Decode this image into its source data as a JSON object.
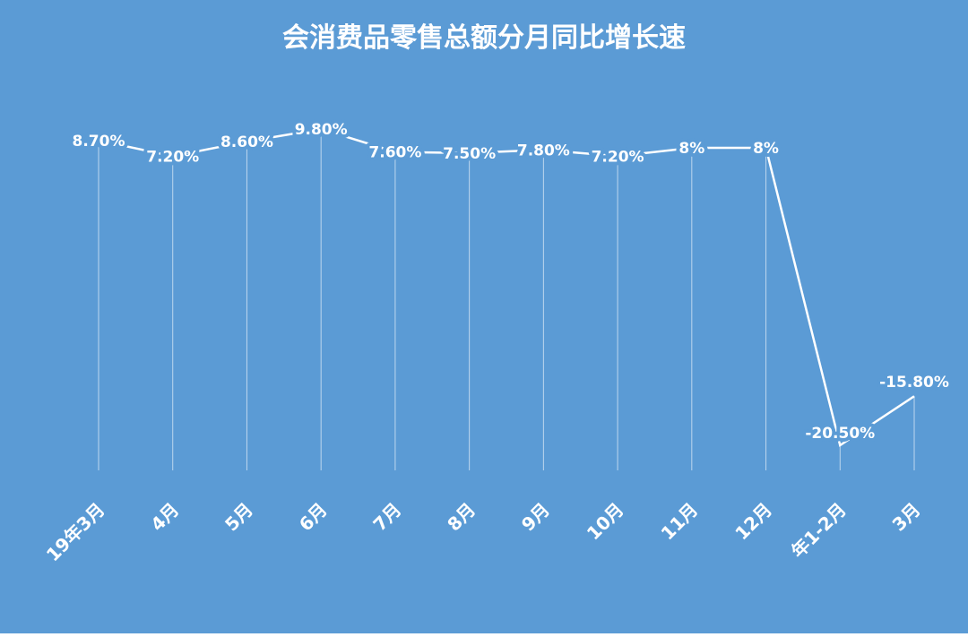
{
  "chart_data": {
    "type": "line",
    "title": "会消费品零售总额分月同比增长速",
    "categories": [
      "19年3月",
      "4月",
      "5月",
      "6月",
      "7月",
      "8月",
      "9月",
      "10月",
      "11月",
      "12月",
      "年1-2月",
      "3月"
    ],
    "series": [
      {
        "color": "#ffffff",
        "values": [
          8.7,
          7.2,
          8.6,
          9.8,
          7.6,
          7.5,
          7.8,
          7.2,
          8,
          8,
          -20.5,
          -15.8
        ],
        "value_labels": [
          "8.70%",
          "7.20%",
          "8.60%",
          "9.80%",
          "7.60%",
          "7.50%",
          "7.80%",
          "7.20%",
          "8%",
          "8%",
          "-20.50%",
          "-15.80%"
        ]
      }
    ],
    "background": "#5b9bd5"
  }
}
